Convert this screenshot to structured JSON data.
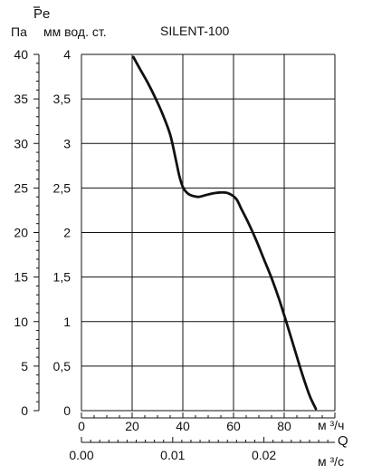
{
  "chart_data": {
    "type": "line",
    "title": "SILENT-100",
    "y_quantity": "Pe",
    "y_unit_left": "Па",
    "y_unit_right": "мм вод. ст.",
    "y_ticks_left": [
      "40",
      "35",
      "30",
      "25",
      "20",
      "15",
      "10",
      "5",
      "0"
    ],
    "y_ticks_right": [
      "4",
      "3,5",
      "3",
      "2,5",
      "2",
      "1,5",
      "1",
      "0,5",
      "0"
    ],
    "x_quantity": "Q",
    "x_unit_main": "м ³/ч",
    "x_unit_secondary": "м ³/с",
    "x_ticks_main": [
      "0",
      "20",
      "40",
      "60",
      "80"
    ],
    "x_ticks_secondary": [
      "0.00",
      "0.01",
      "0.02"
    ],
    "xlim": [
      0,
      100
    ],
    "ylim": [
      0,
      4
    ],
    "grid": true,
    "series": [
      {
        "x": [
          20.5,
          23,
          26,
          29,
          32,
          35,
          37,
          38.5,
          39.5,
          40.2,
          41.5,
          43,
          46,
          49,
          52,
          55,
          58,
          61,
          63,
          66,
          69,
          72,
          75,
          78,
          81,
          84,
          87,
          90,
          92.5
        ],
        "y": [
          3.97,
          3.84,
          3.69,
          3.52,
          3.33,
          3.1,
          2.85,
          2.65,
          2.55,
          2.5,
          2.45,
          2.42,
          2.4,
          2.42,
          2.44,
          2.45,
          2.44,
          2.38,
          2.27,
          2.1,
          1.91,
          1.7,
          1.49,
          1.25,
          0.98,
          0.7,
          0.42,
          0.17,
          0.02
        ]
      }
    ]
  }
}
